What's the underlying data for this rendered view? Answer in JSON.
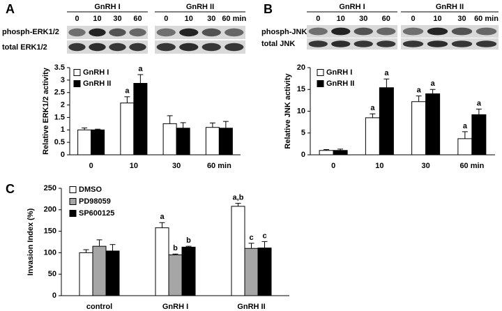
{
  "chart_data": [
    {
      "type": "bar",
      "panel": "A",
      "blot": {
        "groups": [
          "GnRH I",
          "GnRH II"
        ],
        "timepoints": [
          [
            "0",
            "10",
            "30",
            "60"
          ],
          [
            "0",
            "10",
            "30",
            "60 min"
          ]
        ],
        "rows": [
          "phosph-ERK1/2",
          "total ERK1/2"
        ]
      },
      "y_label": "Relative ERK1/2 activity",
      "categories": [
        "0",
        "10",
        "30",
        "60 min"
      ],
      "series": [
        {
          "name": "GnRH I",
          "color": "#ffffff",
          "values": [
            1.0,
            2.08,
            1.25,
            1.1
          ],
          "errors": [
            0.08,
            0.25,
            0.32,
            0.18
          ],
          "sig_labels": [
            null,
            "a",
            null,
            null
          ]
        },
        {
          "name": "GnRH II",
          "color": "#000000",
          "values": [
            1.0,
            2.87,
            1.07,
            1.07
          ],
          "errors": [
            0.03,
            0.35,
            0.22,
            0.27
          ],
          "sig_labels": [
            null,
            "a",
            null,
            null
          ]
        }
      ],
      "ylim": [
        0,
        3.5
      ],
      "yticks": [
        0,
        0.5,
        1,
        1.5,
        2,
        2.5,
        3,
        3.5
      ],
      "legend": "upper left"
    },
    {
      "type": "bar",
      "panel": "B",
      "blot": {
        "groups": [
          "GnRH I",
          "GnRH II"
        ],
        "timepoints": [
          [
            "0",
            "10",
            "30",
            "60"
          ],
          [
            "0",
            "10",
            "30",
            "60 min"
          ]
        ],
        "rows": [
          "phosph-JNK",
          "total JNK"
        ]
      },
      "y_label": "Relative JNK activity",
      "categories": [
        "0",
        "10",
        "30",
        "60 min"
      ],
      "series": [
        {
          "name": "GnRH I",
          "color": "#ffffff",
          "values": [
            1.0,
            8.5,
            12.2,
            3.7
          ],
          "errors": [
            0.2,
            0.9,
            1.3,
            1.6
          ],
          "sig_labels": [
            null,
            "a",
            "a",
            "a"
          ]
        },
        {
          "name": "GnRH II",
          "color": "#000000",
          "values": [
            1.0,
            15.4,
            14.0,
            9.2
          ],
          "errors": [
            0.3,
            2.0,
            1.0,
            1.3
          ],
          "sig_labels": [
            null,
            "a",
            "a",
            "a"
          ]
        }
      ],
      "ylim": [
        0,
        20
      ],
      "yticks": [
        0,
        5,
        10,
        15,
        20
      ],
      "legend": "upper left"
    },
    {
      "type": "bar",
      "panel": "C",
      "y_label": "Invasion Index (%)",
      "categories": [
        "control",
        "GnRH I",
        "GnRH II"
      ],
      "series": [
        {
          "name": "DMSO",
          "color": "#ffffff",
          "values": [
            100,
            158,
            208
          ],
          "errors": [
            7,
            12,
            7
          ],
          "sig_labels": [
            null,
            "a",
            "a,b"
          ]
        },
        {
          "name": "PD98059",
          "color": "#a6a6a6",
          "values": [
            115,
            95,
            110
          ],
          "errors": [
            15,
            2,
            12
          ],
          "sig_labels": [
            null,
            "b",
            "c"
          ]
        },
        {
          "name": "SP600125",
          "color": "#000000",
          "values": [
            104,
            113,
            111
          ],
          "errors": [
            15,
            2,
            15
          ],
          "sig_labels": [
            null,
            "b",
            "c"
          ]
        }
      ],
      "ylim": [
        0,
        250
      ],
      "yticks": [
        0,
        50,
        100,
        150,
        200,
        250
      ],
      "legend": "upper left"
    }
  ]
}
